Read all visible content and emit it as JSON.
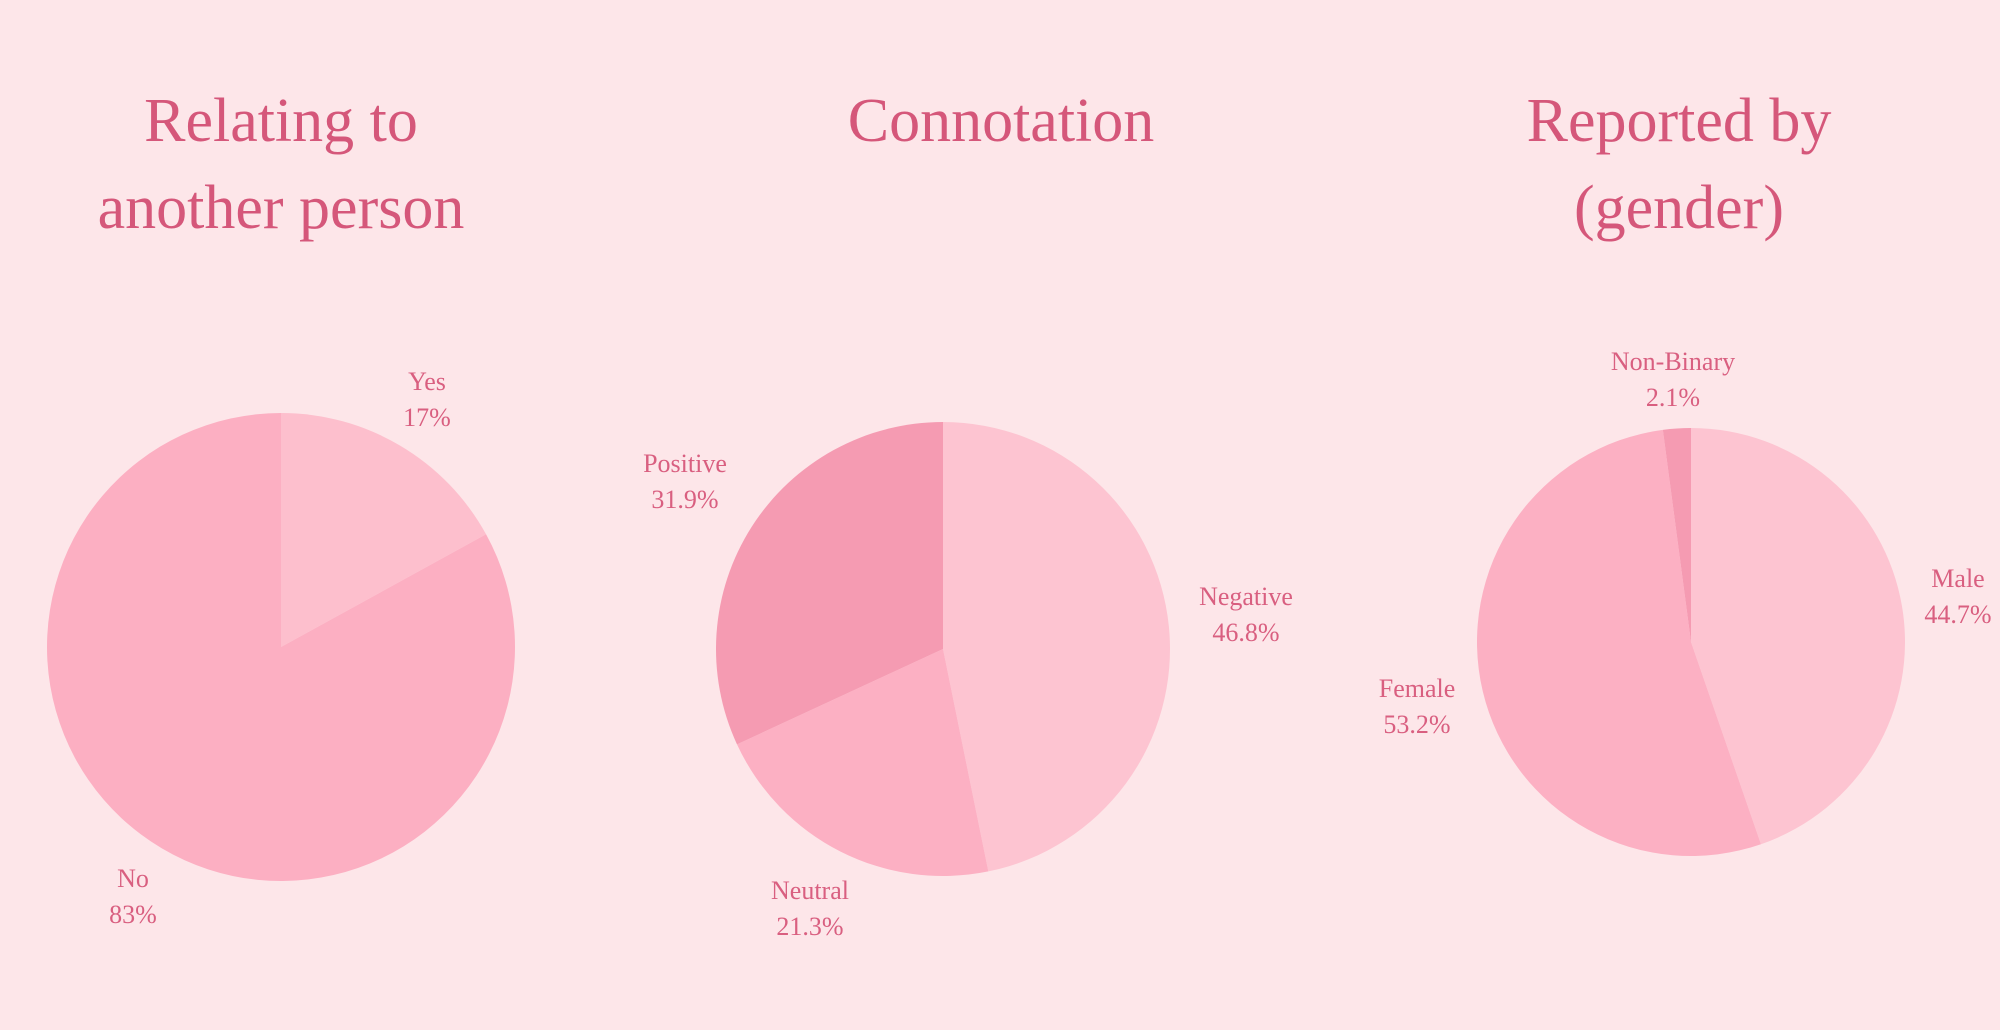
{
  "chart_data": [
    {
      "type": "pie",
      "title": "Relating to another person",
      "categories": [
        "Yes",
        "No"
      ],
      "values": [
        17,
        83
      ],
      "value_labels": [
        "17%",
        "83%"
      ],
      "colors": [
        "#fdbfcd",
        "#fcafc2"
      ]
    },
    {
      "type": "pie",
      "title": "Connotation",
      "categories": [
        "Negative",
        "Neutral",
        "Positive"
      ],
      "values": [
        46.8,
        21.3,
        31.9
      ],
      "value_labels": [
        "46.8%",
        "21.3%",
        "31.9%"
      ],
      "colors": [
        "#fdc4d1",
        "#fcb0c3",
        "#f59bb2"
      ]
    },
    {
      "type": "pie",
      "title": "Reported by (gender)",
      "categories": [
        "Male",
        "Female",
        "Non-Binary"
      ],
      "values": [
        44.7,
        53.2,
        2.1
      ],
      "value_labels": [
        "44.7%",
        "53.2%",
        "2.1%"
      ],
      "colors": [
        "#fdc4d1",
        "#fcb0c3",
        "#f59bb2"
      ]
    }
  ]
}
